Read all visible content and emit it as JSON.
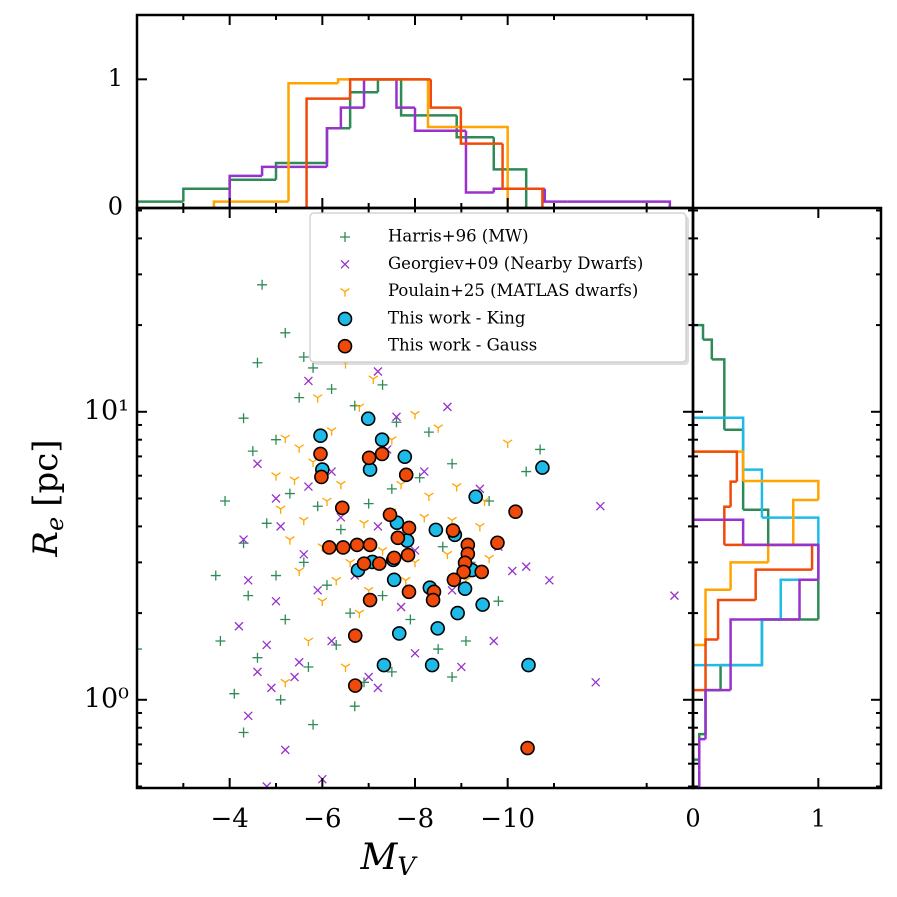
{
  "chart_data": [
    {
      "type": "scatter",
      "xlabel": {
        "main": "M",
        "sub": "V"
      },
      "ylabel": {
        "main": "R",
        "sub": "e",
        "rest": "[pc]"
      },
      "xlim": [
        -2,
        -14
      ],
      "ylim": [
        0.494,
        51
      ],
      "yscale": "log",
      "xticks": [
        {
          "value": -4,
          "label": "−4"
        },
        {
          "value": -6,
          "label": "−6"
        },
        {
          "value": -8,
          "label": "−8"
        },
        {
          "value": -10,
          "label": "−10"
        }
      ],
      "xticks_minor": [
        -3,
        -5,
        -7,
        -9,
        -11,
        -13
      ],
      "yticks": [
        {
          "value": 1,
          "label": "10⁰"
        },
        {
          "value": 10,
          "label": "10¹"
        }
      ],
      "yticks_minor": [
        0.5,
        0.6,
        0.7,
        0.8,
        0.9,
        2,
        3,
        4,
        5,
        6,
        7,
        8,
        9,
        20,
        30,
        40,
        50
      ],
      "legend": "upper center",
      "series": [
        {
          "name": "Harris+96 (MW)",
          "color": "#2e8b57",
          "marker": "plus",
          "x": [
            -4.7,
            -5.2,
            -4.6,
            -4.3,
            -4.5,
            -5.0,
            -5.5,
            -5.8,
            -6.2,
            -6.7,
            -7.3,
            -7.6,
            -8.3,
            -8.8,
            -10.7,
            -10.4,
            -9.6,
            -3.9,
            -4.3,
            -4.8,
            -5.3,
            -5.9,
            -6.4,
            -7.0,
            -7.5,
            -8.1,
            -8.6,
            -9.2,
            -9.8,
            -3.7,
            -4.4,
            -5.0,
            -5.6,
            -6.1,
            -6.6,
            -7.3,
            -7.9,
            -8.5,
            -9.1,
            -3.8,
            -4.6,
            -5.2,
            -5.7,
            -6.3,
            -6.9,
            -7.5,
            -8.8,
            -4.1,
            -5.1,
            -6.7,
            -4.3,
            -5.8,
            -2.0,
            -5.6,
            -6.3
          ],
          "values": [
            27.6,
            18.8,
            14.8,
            9.5,
            7.3,
            8.0,
            11.2,
            14.2,
            12.0,
            10.5,
            12.4,
            9.2,
            8.5,
            6.6,
            7.4,
            6.2,
            4.9,
            4.9,
            3.5,
            4.1,
            5.2,
            4.7,
            3.9,
            4.8,
            5.4,
            5.9,
            3.4,
            3.0,
            2.2,
            2.7,
            2.3,
            2.7,
            3.0,
            2.5,
            2.0,
            2.3,
            1.9,
            1.5,
            1.6,
            1.6,
            1.4,
            1.9,
            1.3,
            1.55,
            1.15,
            1.25,
            1.2,
            1.05,
            1.0,
            0.95,
            0.77,
            0.82,
            1.5,
            15.5,
            17.5
          ]
        },
        {
          "name": "Georgiev+09 (Nearby Dwarfs)",
          "color": "#9932cc",
          "marker": "cross",
          "x": [
            -6.3,
            -6.8,
            -5.7,
            -7.2,
            -7.6,
            -8.7,
            -4.6,
            -5.0,
            -5.7,
            -6.2,
            -7.4,
            -8.2,
            -9.4,
            -12.0,
            -4.3,
            -5.1,
            -5.6,
            -6.4,
            -7.2,
            -8.0,
            -9.8,
            -10.4,
            -4.4,
            -5.0,
            -5.9,
            -6.7,
            -7.7,
            -8.8,
            -10.9,
            -13.6,
            -4.2,
            -4.8,
            -5.5,
            -6.2,
            -7.0,
            -8.0,
            -9.7,
            -11.9,
            -4.6,
            -4.9,
            -5.4,
            -7.2,
            -4.4,
            -5.2,
            -4.8,
            -6.0,
            -9.0,
            -10.1
          ],
          "values": [
            16,
            15.5,
            12.8,
            13.8,
            9.6,
            10.4,
            6.6,
            5.0,
            5.5,
            6.2,
            7.4,
            6.2,
            5.4,
            4.7,
            3.6,
            4.0,
            3.2,
            4.3,
            4.0,
            3.3,
            3.4,
            2.9,
            2.6,
            2.2,
            2.4,
            2.7,
            2.1,
            2.4,
            2.6,
            2.3,
            1.8,
            1.55,
            1.35,
            1.6,
            1.2,
            1.45,
            1.6,
            1.15,
            1.25,
            1.1,
            1.2,
            1.1,
            0.88,
            0.67,
            0.5,
            0.53,
            1.3,
            2.8
          ]
        },
        {
          "name": "Poulain+25 (MATLAS dwarfs)",
          "color": "#ffa500",
          "marker": "tri_down",
          "x": [
            -6.5,
            -7.1,
            -5.9,
            -6.8,
            -8.0,
            -5.2,
            -5.5,
            -6.2,
            -7.5,
            -8.5,
            -10.0,
            -5.0,
            -5.4,
            -5.8,
            -6.4,
            -7.0,
            -7.7,
            -8.3,
            -8.9,
            -9.5,
            -5.1,
            -5.6,
            -6.1,
            -6.9,
            -7.5,
            -8.2,
            -8.8,
            -9.4,
            -5.3,
            -6.0,
            -6.6,
            -7.3,
            -8.0,
            -8.7,
            -9.6,
            -5.5,
            -6.3,
            -7.0,
            -7.8,
            -9.1,
            -6.0,
            -6.8,
            -5.7,
            -6.5,
            -5.2
          ],
          "values": [
            14.7,
            13.0,
            11.2,
            10.4,
            9.8,
            8.1,
            7.5,
            8.6,
            8.0,
            8.8,
            7.8,
            6.0,
            5.8,
            6.7,
            5.6,
            6.3,
            5.6,
            5.1,
            5.5,
            4.9,
            4.6,
            4.2,
            4.9,
            4.1,
            4.5,
            4.3,
            4.2,
            4.0,
            3.6,
            3.4,
            3.0,
            3.3,
            3.0,
            3.2,
            3.1,
            2.8,
            2.6,
            2.4,
            2.6,
            2.6,
            2.2,
            2.0,
            1.6,
            1.3,
            1.15
          ]
        },
        {
          "name": "This work - King",
          "color": "#1ebbe8",
          "marker": "circle",
          "x": [
            -5.96,
            -6.99,
            -7.29,
            -6.0,
            -7.78,
            -7.03,
            -10.75,
            -9.31,
            -7.61,
            -8.45,
            -8.86,
            -7.83,
            -6.77,
            -7.53,
            -7.55,
            -9.23,
            -9.08,
            -8.32,
            -8.92,
            -9.46,
            -8.49,
            -7.66,
            -7.33,
            -8.37,
            -10.45,
            -7.08
          ],
          "values": [
            8.26,
            9.46,
            8.0,
            6.3,
            6.98,
            6.3,
            6.4,
            5.07,
            4.12,
            3.89,
            3.74,
            3.57,
            2.82,
            3.06,
            2.61,
            2.82,
            2.43,
            2.45,
            2.0,
            2.14,
            1.77,
            1.7,
            1.32,
            1.32,
            1.32,
            3.01
          ]
        },
        {
          "name": "This work - Gauss",
          "color": "#f04a0a",
          "marker": "circle",
          "x": [
            -5.96,
            -5.98,
            -7.01,
            -7.29,
            -7.81,
            -6.43,
            -7.46,
            -7.87,
            -6.75,
            -6.45,
            -7.03,
            -7.63,
            -8.82,
            -9.14,
            -9.78,
            -10.17,
            -6.15,
            -7.55,
            -7.85,
            -9.14,
            -9.08,
            -7.23,
            -6.9,
            -9.05,
            -9.44,
            -8.84,
            -8.41,
            -7.87,
            -7.03,
            -8.39,
            -6.71,
            -6.71,
            -10.43
          ],
          "values": [
            7.14,
            5.94,
            6.92,
            7.14,
            6.04,
            4.64,
            4.39,
            3.95,
            3.45,
            3.38,
            3.45,
            3.65,
            3.87,
            3.45,
            3.51,
            4.5,
            3.38,
            3.11,
            3.18,
            3.21,
            2.99,
            2.97,
            2.97,
            2.78,
            2.78,
            2.61,
            2.37,
            2.37,
            2.22,
            2.22,
            1.67,
            1.12,
            0.68
          ]
        }
      ]
    },
    {
      "type": "histogram",
      "orientation": "vertical",
      "ylim": [
        0,
        1.5
      ],
      "yticks": [
        0,
        1
      ],
      "series": [
        {
          "color": "#2e8b57",
          "bins": [
            -2,
            -3,
            -4,
            -5,
            -6.1,
            -6.6,
            -7.2,
            -7.7,
            -8.9,
            -9.7,
            -10.4
          ],
          "values": [
            0.05,
            0.15,
            0.22,
            0.35,
            0.62,
            0.9,
            1.0,
            0.72,
            0.55,
            0.3
          ]
        },
        {
          "color": "#9932cc",
          "bins": [
            -4.0,
            -4.7,
            -6.1,
            -6.4,
            -6.9,
            -7.6,
            -8.0,
            -9.1,
            -9.7,
            -10.8,
            -11.3,
            -13.5
          ],
          "values": [
            0.25,
            0.32,
            0.62,
            0.78,
            1.0,
            0.78,
            0.6,
            0.12,
            0.15,
            0.05,
            0.05
          ]
        },
        {
          "color": "#ffa500",
          "bins": [
            -3.66,
            -5.27,
            -6.34,
            -8.28,
            -10.0
          ],
          "values": [
            0.05,
            0.97,
            1.0,
            0.63
          ]
        },
        {
          "color": "#f04a0a",
          "bins": [
            -5.66,
            -6.6,
            -8.34,
            -8.99,
            -9.89,
            -10.75
          ],
          "values": [
            0.85,
            1.0,
            0.78,
            0.5,
            0.15
          ]
        }
      ]
    },
    {
      "type": "histogram",
      "orientation": "horizontal",
      "xlim": [
        0,
        1.5
      ],
      "xticks": [
        0,
        1
      ],
      "series": [
        {
          "color": "#2e8b57",
          "bins": [
            20.0,
            17.8,
            15.2,
            8.66,
            4.57,
            3.45,
            1.9,
            1.32,
            1.08,
            0.76,
            0.62
          ],
          "values": [
            0.08,
            0.15,
            0.25,
            0.4,
            0.6,
            1.0,
            0.55,
            0.22,
            0.1,
            0.05
          ]
        },
        {
          "color": "#1ebbe8",
          "bins": [
            9.53,
            6.3,
            4.29,
            2.61,
            1.9,
            1.32
          ],
          "values": [
            0.4,
            0.55,
            1.0,
            0.7,
            0.55
          ]
        },
        {
          "color": "#ffa500",
          "bins": [
            7.27,
            5.75,
            4.94,
            3.45,
            3.0,
            2.41,
            1.55
          ],
          "values": [
            0.4,
            1.0,
            0.8,
            0.6,
            0.3,
            0.1
          ]
        },
        {
          "color": "#f04a0a",
          "bins": [
            7.27,
            5.72,
            4.68,
            3.45,
            2.83,
            2.22,
            1.62,
            1.08
          ],
          "values": [
            0.35,
            0.3,
            0.25,
            0.95,
            0.5,
            0.2,
            0.1
          ]
        },
        {
          "color": "#9932cc",
          "bins": [
            4.22,
            3.45,
            2.61,
            1.9,
            1.08,
            0.73,
            0.57,
            0.49
          ],
          "values": [
            0.4,
            1.0,
            0.85,
            0.3,
            0.1,
            0.05,
            0.05
          ]
        }
      ]
    }
  ]
}
